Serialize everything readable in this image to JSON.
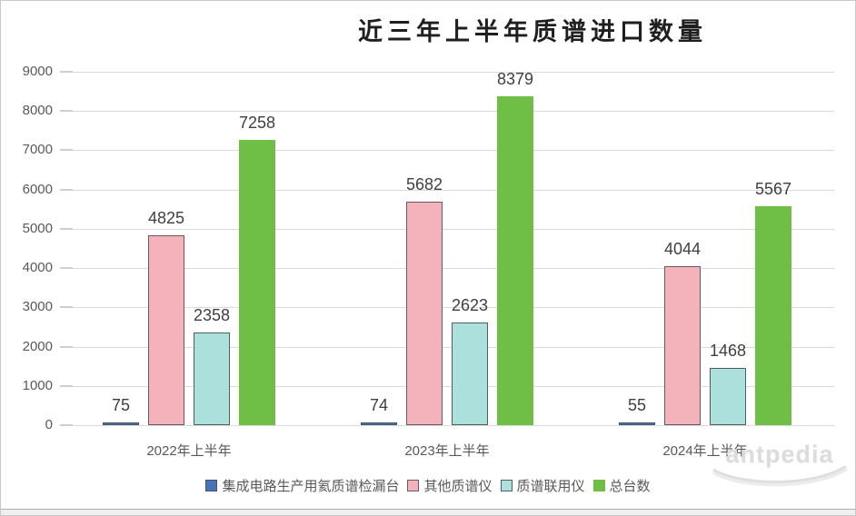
{
  "chart_data": {
    "type": "bar",
    "title": "近三年上半年质谱进口数量",
    "categories": [
      "2022年上半年",
      "2023年上半年",
      "2024年上半年"
    ],
    "series": [
      {
        "name": "集成电路生产用氦质谱检漏台",
        "fill": "#4a72b8",
        "border": "#44546a",
        "values": [
          75,
          74,
          55
        ]
      },
      {
        "name": "其他质谱仪",
        "fill": "#f4b3bb",
        "border": "#6a5a5d",
        "values": [
          4825,
          5682,
          4044
        ]
      },
      {
        "name": "质谱联用仪",
        "fill": "#abe0dc",
        "border": "#4f5e5f",
        "values": [
          2358,
          2623,
          1468
        ]
      },
      {
        "name": "总台数",
        "fill": "#6fbe45",
        "border": "#6fbe45",
        "values": [
          7258,
          8379,
          5567
        ]
      }
    ],
    "ylim": [
      0,
      9000
    ],
    "y_tick_step": 1000,
    "grid": true,
    "legend_position": "bottom",
    "value_labels": true
  },
  "watermark": {
    "text": "antpedia"
  },
  "colors": {
    "gridline": "#dadada",
    "tick_text": "#595959",
    "value_label_text": "#3f3f3f",
    "title_text": "#1f1f1f"
  }
}
